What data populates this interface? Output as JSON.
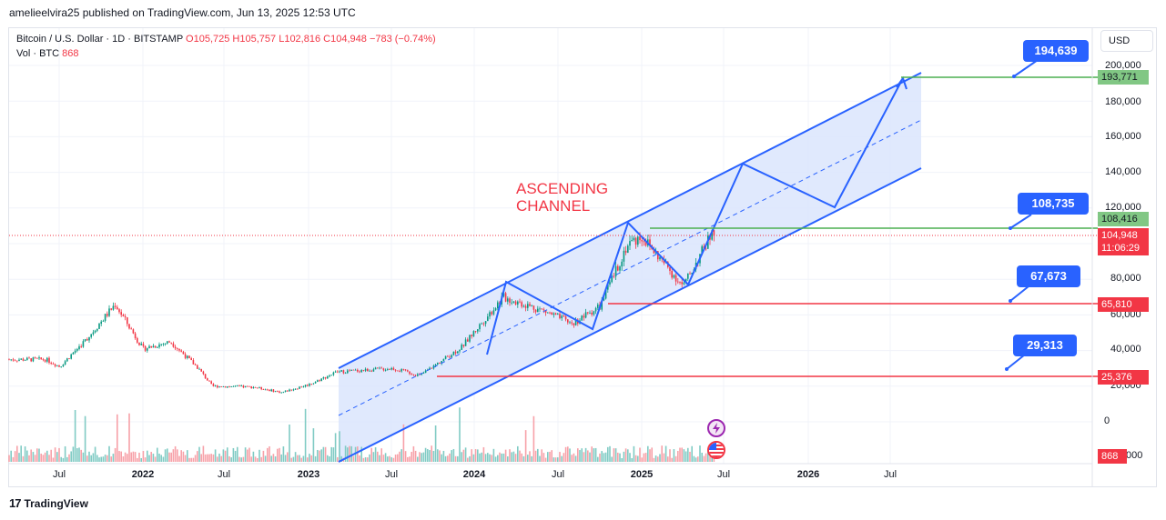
{
  "publish": {
    "text": "amelieelvira25 published on TradingView.com, Jun 13, 2025 12:53 UTC"
  },
  "legend": {
    "symbol": "Bitcoin / U.S. Dollar · 1D · BITSTAMP",
    "open": "O105,725",
    "high": "H105,757",
    "low": "L102,816",
    "close": "C104,948",
    "change": "−783 (−0.74%)",
    "vol_label": "Vol · BTC",
    "vol_value": "868"
  },
  "currency_button": "USD",
  "y_axis": {
    "ticks": [
      "200,000",
      "180,000",
      "160,000",
      "140,000",
      "120,000",
      "80,000",
      "60,000",
      "40,000",
      "20,000",
      "0",
      "000"
    ]
  },
  "x_axis": {
    "labels": [
      {
        "text": "Jul",
        "bold": false
      },
      {
        "text": "2022",
        "bold": true
      },
      {
        "text": "Jul",
        "bold": false
      },
      {
        "text": "2023",
        "bold": true
      },
      {
        "text": "Jul",
        "bold": false
      },
      {
        "text": "2024",
        "bold": true
      },
      {
        "text": "Jul",
        "bold": false
      },
      {
        "text": "2025",
        "bold": true
      },
      {
        "text": "Jul",
        "bold": false
      },
      {
        "text": "2026",
        "bold": true
      },
      {
        "text": "Jul",
        "bold": false
      }
    ]
  },
  "price_tags": {
    "target_upper": "193,771",
    "resistance": "108,416",
    "last_price": "104,948",
    "countdown": "11:06:29",
    "support_1": "65,810",
    "support_2": "25,376",
    "volume": "868"
  },
  "callouts": [
    "194,639",
    "108,735",
    "67,673",
    "29,313"
  ],
  "annotation": {
    "line1": "ASCENDING",
    "line2": "CHANNEL"
  },
  "footer": {
    "brand": "TradingView"
  },
  "colors": {
    "channel": "#2962ff",
    "channel_fill": "#dbe5fd",
    "up": "#089981",
    "down": "#f23645",
    "green_level": "#4caf50",
    "red_level": "#f23645",
    "callout": "#2962ff"
  },
  "chart_data": {
    "type": "candlestick",
    "symbol": "BTCUSD",
    "interval": "1D",
    "price_range": [
      0,
      210000
    ],
    "levels": [
      {
        "price": 193771,
        "color": "green"
      },
      {
        "price": 108416,
        "color": "green"
      },
      {
        "price": 65810,
        "color": "red"
      },
      {
        "price": 25376,
        "color": "red"
      }
    ],
    "last_price": 104948,
    "close_path": [
      [
        "2021-06",
        35000
      ],
      [
        "2021-07",
        31000
      ],
      [
        "2021-09",
        47000
      ],
      [
        "2021-11",
        66000
      ],
      [
        "2022-01",
        41000
      ],
      [
        "2022-03",
        45000
      ],
      [
        "2022-05",
        30000
      ],
      [
        "2022-06",
        20000
      ],
      [
        "2022-09",
        19500
      ],
      [
        "2022-11",
        16500
      ],
      [
        "2023-01",
        21000
      ],
      [
        "2023-03",
        28000
      ],
      [
        "2023-07",
        30000
      ],
      [
        "2023-09",
        26000
      ],
      [
        "2023-12",
        42000
      ],
      [
        "2024-03",
        70000
      ],
      [
        "2024-06",
        62000
      ],
      [
        "2024-08",
        55000
      ],
      [
        "2024-10",
        65000
      ],
      [
        "2024-12",
        100000
      ],
      [
        "2025-01",
        104000
      ],
      [
        "2025-04",
        76000
      ],
      [
        "2025-06",
        105000
      ]
    ]
  }
}
